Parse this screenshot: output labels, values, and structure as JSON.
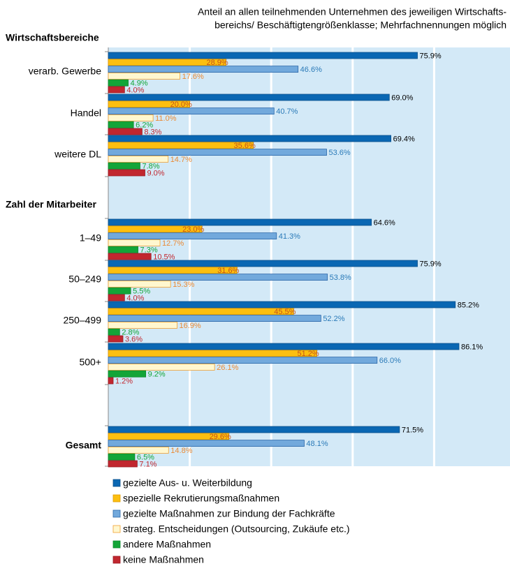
{
  "chart_data": {
    "type": "bar",
    "orientation": "horizontal",
    "subtitle": [
      "Anteil an allen teilnehmenden Unternehmen des jeweiligen Wirtschafts-",
      "bereichs/ Beschäftigtengrößenklasse; Mehrfachnennungen möglich"
    ],
    "sections": [
      {
        "label": "Wirtschaftsbereiche"
      },
      {
        "label": "Zahl der Mitarbeiter"
      }
    ],
    "categories": [
      "verarb. Gewerbe",
      "Handel",
      "weitere DL",
      "1–49",
      "50–249",
      "250–499",
      "500+",
      "Gesamt"
    ],
    "xlim": [
      0,
      100
    ],
    "xticks": [
      0,
      20,
      40,
      60,
      80,
      100
    ],
    "grid": true,
    "legend": "bottom",
    "series": [
      {
        "name": "gezielte Aus- u. Weiterbildung",
        "color": "#0a67b3",
        "border": "#0a4f8a",
        "label_color": "#000000",
        "values": [
          75.9,
          69.0,
          69.4,
          64.6,
          75.9,
          85.2,
          86.1,
          71.5
        ],
        "value_labels": [
          "75.9%",
          "69.0%",
          "69.4%",
          "64.6%",
          "75.9%",
          "85.2%",
          "86.1%",
          "71.5%"
        ]
      },
      {
        "name": "spezielle Rekrutierungsmaßnahmen",
        "color": "#fcbf10",
        "border": "#e09a00",
        "label_color": "#c4521a",
        "values": [
          28.9,
          20.0,
          35.6,
          23.0,
          31.6,
          45.5,
          51.2,
          29.6
        ],
        "value_labels": [
          "28.9%",
          "20.0%",
          "35.6%",
          "23.0%",
          "31.6%",
          "45.5%",
          "51.2%",
          "29.6%"
        ]
      },
      {
        "name": "gezielte Maßnahmen zur Bindung der Fachkräfte",
        "color": "#72a9dc",
        "border": "#2a66a8",
        "label_color": "#2a7ab8",
        "values": [
          46.6,
          40.7,
          53.6,
          41.3,
          53.8,
          52.2,
          66.0,
          48.1
        ],
        "value_labels": [
          "46.6%",
          "40.7%",
          "53.6%",
          "41.3%",
          "53.8%",
          "52.2%",
          "66.0%",
          "48.1%"
        ]
      },
      {
        "name": "strateg. Entscheidungen (Outsourcing, Zukäufe etc.)",
        "color": "#fff7cf",
        "border": "#f0a030",
        "label_color": "#ea8a35",
        "values": [
          17.6,
          11.0,
          14.7,
          12.7,
          15.3,
          16.9,
          26.1,
          14.8
        ],
        "value_labels": [
          "17.6%",
          "11.0%",
          "14.7%",
          "12.7%",
          "15.3%",
          "16.9%",
          "26.1%",
          "14.8%"
        ]
      },
      {
        "name": "andere Maßnahmen",
        "color": "#13a538",
        "border": "#0e8a2e",
        "label_color": "#13a538",
        "values": [
          4.9,
          6.2,
          7.8,
          7.3,
          5.5,
          2.8,
          9.2,
          6.5
        ],
        "value_labels": [
          "4.9%",
          "6.2%",
          "7.8%",
          "7.3%",
          "5.5%",
          "2.8%",
          "9.2%",
          "6.5%"
        ]
      },
      {
        "name": "keine Maßnahmen",
        "color": "#c1272f",
        "border": "#9a1a22",
        "label_color": "#c1272f",
        "values": [
          4.0,
          8.3,
          9.0,
          10.5,
          4.0,
          3.6,
          1.2,
          7.1
        ],
        "value_labels": [
          "4.0%",
          "8.3%",
          "9.0%",
          "10.5%",
          "4.0%",
          "3.6%",
          "1.2%",
          "7.1%"
        ]
      }
    ]
  }
}
